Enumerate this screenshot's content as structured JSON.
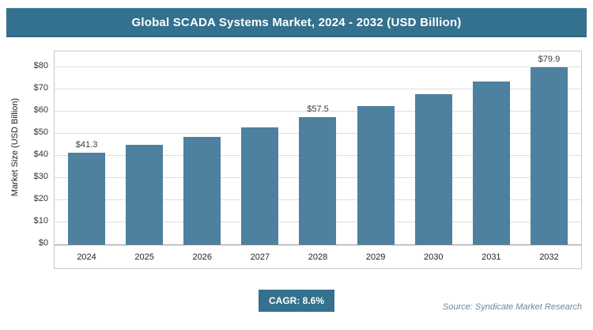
{
  "header": {
    "title": "Global SCADA Systems Market, 2024 - 2032 (USD Billion)"
  },
  "footer": {
    "cagr_label": "CAGR: 8.6%",
    "source": "Source: Syndicate Market Research"
  },
  "colors": {
    "accent": "#34718e",
    "bar": "#4e80a0"
  },
  "chart_data": {
    "type": "bar",
    "title": "Global SCADA Systems Market, 2024 - 2032 (USD Billion)",
    "categories": [
      "2024",
      "2025",
      "2026",
      "2027",
      "2028",
      "2029",
      "2030",
      "2031",
      "2032"
    ],
    "values": [
      41.3,
      44.9,
      48.7,
      52.9,
      57.5,
      62.4,
      67.8,
      73.6,
      79.9
    ],
    "data_labels": [
      "$41.3",
      "",
      "",
      "",
      "$57.5",
      "",
      "",
      "",
      "$79.9"
    ],
    "xlabel": "",
    "ylabel": "Market Size (USD Billion)",
    "ylim": [
      0,
      80
    ],
    "ytick_step": 10,
    "ytick_labels": [
      "$0",
      "$10",
      "$20",
      "$30",
      "$40",
      "$50",
      "$60",
      "$70",
      "$80"
    ],
    "grid": "horizontal",
    "legend": "none",
    "cagr": "8.6%"
  }
}
